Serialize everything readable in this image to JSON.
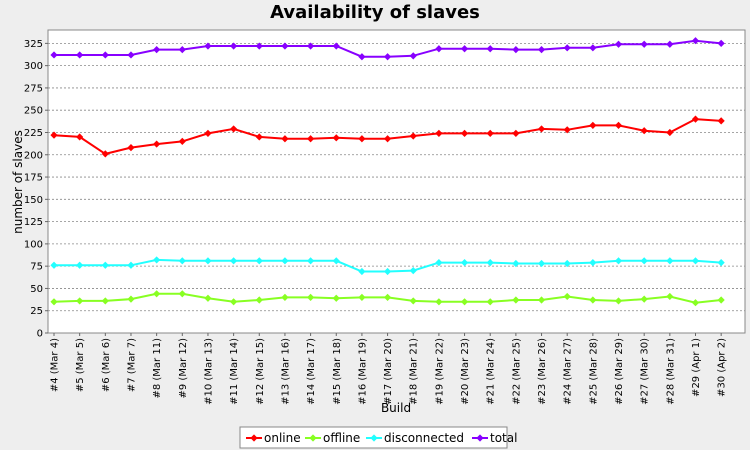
{
  "chart_data": {
    "type": "line",
    "title": "Availability of slaves",
    "xlabel": "Build",
    "ylabel": "number of slaves",
    "ylim": [
      0,
      340
    ],
    "yticks": [
      0,
      25,
      50,
      75,
      100,
      125,
      150,
      175,
      200,
      225,
      250,
      275,
      300,
      325
    ],
    "grid": true,
    "legend_position": "bottom-center",
    "categories": [
      "#4 (Mar 4)",
      "#5 (Mar 5)",
      "#6 (Mar 6)",
      "#7 (Mar 7)",
      "#8 (Mar 11)",
      "#9 (Mar 12)",
      "#10 (Mar 13)",
      "#11 (Mar 14)",
      "#12 (Mar 15)",
      "#13 (Mar 16)",
      "#14 (Mar 17)",
      "#15 (Mar 18)",
      "#16 (Mar 19)",
      "#17 (Mar 20)",
      "#18 (Mar 21)",
      "#19 (Mar 22)",
      "#20 (Mar 23)",
      "#21 (Mar 24)",
      "#22 (Mar 25)",
      "#23 (Mar 26)",
      "#24 (Mar 27)",
      "#25 (Mar 28)",
      "#26 (Mar 29)",
      "#27 (Mar 30)",
      "#28 (Mar 31)",
      "#29 (Apr 1)",
      "#30 (Apr 2)"
    ],
    "series": [
      {
        "name": "online",
        "color": "#ff0000",
        "values": [
          222,
          220,
          201,
          208,
          212,
          215,
          224,
          229,
          220,
          218,
          218,
          219,
          218,
          218,
          221,
          224,
          224,
          224,
          224,
          229,
          228,
          233,
          233,
          227,
          225,
          240,
          238
        ]
      },
      {
        "name": "offline",
        "color": "#88ff22",
        "values": [
          35,
          36,
          36,
          38,
          44,
          44,
          39,
          35,
          37,
          40,
          40,
          39,
          40,
          40,
          36,
          35,
          35,
          35,
          37,
          37,
          41,
          37,
          36,
          38,
          41,
          34,
          37
        ]
      },
      {
        "name": "disconnected",
        "color": "#22ffff",
        "values": [
          76,
          76,
          76,
          76,
          82,
          81,
          81,
          81,
          81,
          81,
          81,
          81,
          69,
          69,
          70,
          79,
          79,
          79,
          78,
          78,
          78,
          79,
          81,
          81,
          81,
          81,
          79
        ]
      },
      {
        "name": "total",
        "color": "#8800ff",
        "values": [
          312,
          312,
          312,
          312,
          318,
          318,
          322,
          322,
          322,
          322,
          322,
          322,
          310,
          310,
          311,
          319,
          319,
          319,
          318,
          318,
          320,
          320,
          324,
          324,
          324,
          328,
          325
        ]
      }
    ]
  }
}
